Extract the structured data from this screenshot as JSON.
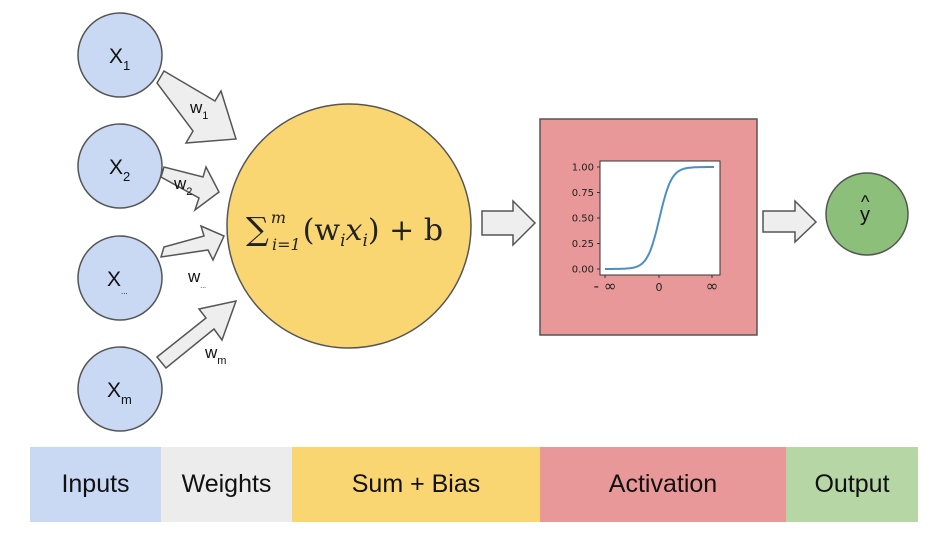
{
  "colors": {
    "input_fill": "#c9d8f3",
    "sum_fill": "#fad673",
    "activation_fill": "#e89898",
    "output_fill": "#8cc07a",
    "weights_band": "#ececec",
    "output_band": "#b7d6a6",
    "stroke": "#555555",
    "arrow_fill": "#eeeeee",
    "curve": "#4d8fc4"
  },
  "inputs": [
    {
      "base": "X",
      "sub": "1"
    },
    {
      "base": "X",
      "sub": "2"
    },
    {
      "base": "X",
      "sub": "..."
    },
    {
      "base": "X",
      "sub": "m"
    }
  ],
  "weights": [
    {
      "base": "w",
      "sub": "1"
    },
    {
      "base": "w",
      "sub": "2"
    },
    {
      "base": "w",
      "sub": "..."
    },
    {
      "base": "w",
      "sub": "m"
    }
  ],
  "sum_formula": {
    "sigma": "∑",
    "upper": "m",
    "lower": "i=1",
    "body": "(w",
    "body_sub": "i",
    "body_mid": "x",
    "body_sub2": "i",
    "tail": ") + b"
  },
  "activation_plot": {
    "y_ticks": [
      "1.00",
      "0.75",
      "0.50",
      "0.25",
      "0.00"
    ],
    "x_ticks": [
      "- ∞",
      "0",
      "∞"
    ],
    "curve": "sigmoid"
  },
  "output": {
    "label": "y",
    "hat": "^"
  },
  "legend": [
    {
      "label": "Inputs",
      "color": "#c9d8f3"
    },
    {
      "label": "Weights",
      "color": "#ececec"
    },
    {
      "label": "Sum + Bias",
      "color": "#fad673"
    },
    {
      "label": "Activation",
      "color": "#e89898"
    },
    {
      "label": "Output",
      "color": "#b7d6a6"
    }
  ]
}
